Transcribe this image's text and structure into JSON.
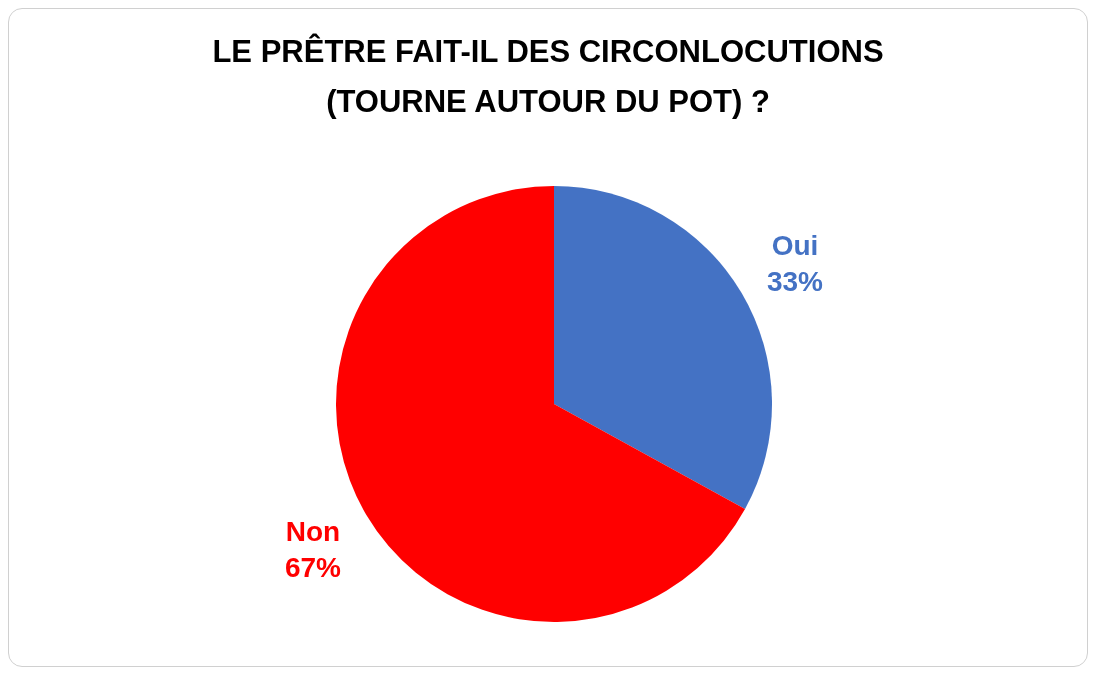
{
  "chart_data": {
    "type": "pie",
    "title": "LE PRÊTRE FAIT-IL DES CIRCONLOCUTIONS (TOURNE AUTOUR DU POT) ?",
    "categories": [
      "Oui",
      "Non"
    ],
    "values": [
      33,
      67
    ],
    "colors": [
      "#4472c4",
      "#ff0000"
    ],
    "value_labels": [
      "33%",
      "67%"
    ]
  }
}
